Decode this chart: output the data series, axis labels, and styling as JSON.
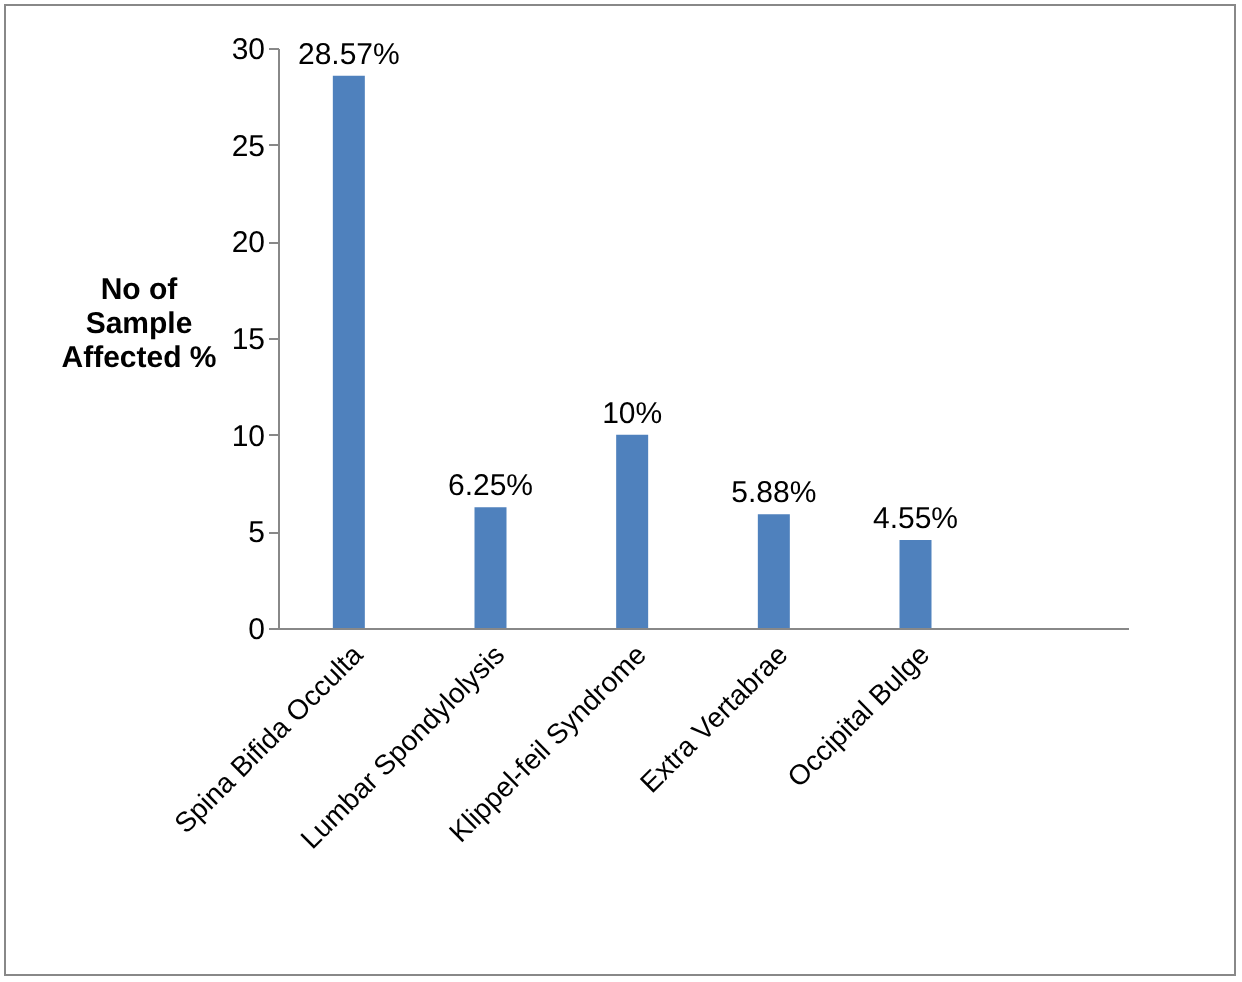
{
  "chart_data": {
    "type": "bar",
    "ylabel": "No of Sample Affected %",
    "categories": [
      "Spina Bifida Occulta",
      "Lumbar Spondylolysis",
      "Klippel-feil Syndrome",
      "Extra Vertabrae",
      "Occipital Bulge",
      null
    ],
    "values": [
      28.57,
      6.25,
      10,
      5.88,
      4.55,
      null
    ],
    "value_labels": [
      "28.57%",
      "6.25%",
      "10%",
      "5.88%",
      "4.55%",
      null
    ],
    "color": "#4f81bd",
    "ylim": [
      0,
      30
    ],
    "yticks": [
      0,
      5,
      10,
      15,
      20,
      25,
      30
    ],
    "grid": false
  }
}
